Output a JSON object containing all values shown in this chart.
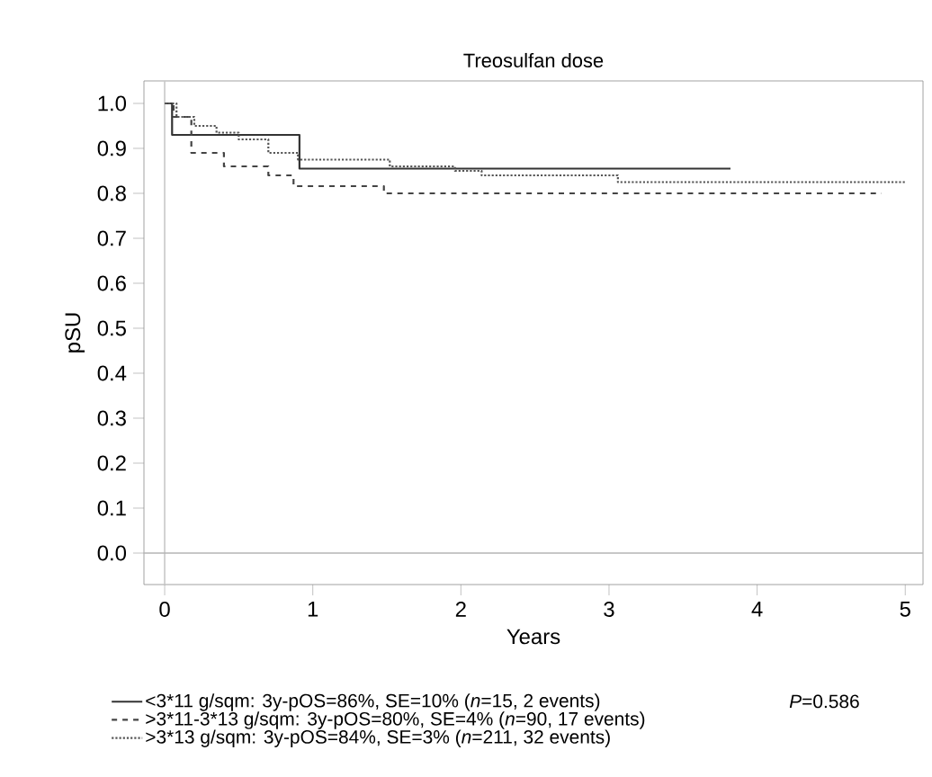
{
  "chart_data": {
    "type": "step",
    "title": "Treosulfan dose",
    "xlabel": "Years",
    "ylabel": "pSU",
    "xlim": [
      -0.14,
      5.12
    ],
    "ylim": [
      -0.07,
      1.05
    ],
    "xticks": [
      0,
      1,
      2,
      3,
      4,
      5
    ],
    "yticks": [
      {
        "value": 0,
        "label": "0.0"
      },
      0.1,
      0.2,
      0.3,
      0.4,
      0.5,
      0.6,
      0.7,
      0.8,
      0.9,
      {
        "value": 1,
        "label": "1.0"
      }
    ],
    "grid": false,
    "legend": "bottom",
    "ref_lines": [
      {
        "axis": "x",
        "value": 0,
        "color": "#c8c8c8"
      },
      {
        "axis": "y",
        "value": 0,
        "color": "#b4b4b4"
      }
    ],
    "annotations": [
      "*P*=0.586"
    ],
    "series": [
      {
        "name": "<3*11 g/sqm: 3y-pOS=86%, SE=10% (*n*=15, 2 events)",
        "color": "#333333",
        "line_style": "solid",
        "x": [
          0,
          0.05,
          0.91,
          3.82
        ],
        "values": [
          1.0,
          0.93,
          0.855,
          0.855
        ]
      },
      {
        "name": ">3*11-3*13 g/sqm: 3y-pOS=80%, SE=4% (*n*=90, 17 events)",
        "color": "#444444",
        "line_style": "dashed",
        "x": [
          0,
          0.06,
          0.18,
          0.4,
          0.7,
          0.87,
          1.48,
          4.84
        ],
        "values": [
          1.0,
          0.97,
          0.89,
          0.86,
          0.84,
          0.816,
          0.8,
          0.8
        ]
      },
      {
        "name": ">3*13 g/sqm: 3y-pOS=84%, SE=3% (*n*=211, 32 events)",
        "color": "#555555",
        "line_style": "dotted",
        "x": [
          0,
          0.08,
          0.2,
          0.35,
          0.5,
          0.7,
          0.9,
          1.52,
          1.96,
          2.14,
          3.06,
          5.0
        ],
        "values": [
          1.0,
          0.97,
          0.95,
          0.935,
          0.92,
          0.89,
          0.875,
          0.86,
          0.85,
          0.84,
          0.825,
          0.825
        ]
      }
    ]
  }
}
